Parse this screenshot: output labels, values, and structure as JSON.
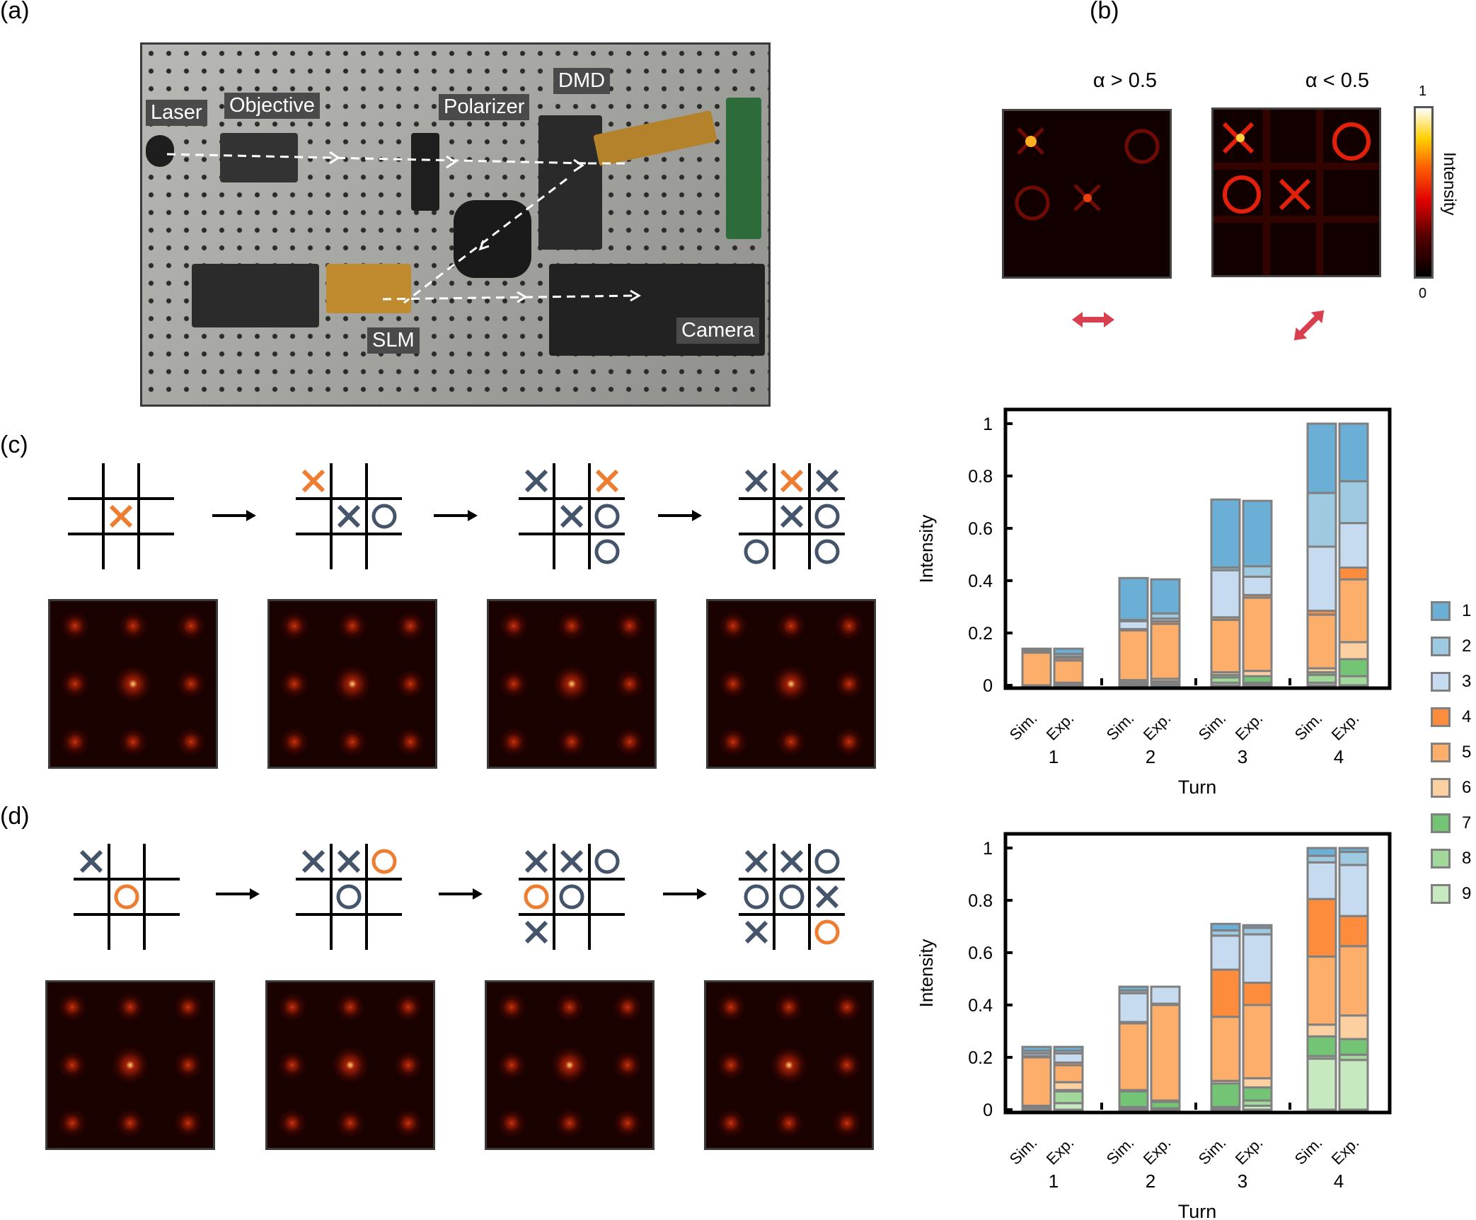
{
  "panels": {
    "a": "(a)",
    "b": "(b)",
    "c": "(c)",
    "d": "(d)"
  },
  "photo_labels": {
    "laser": "Laser",
    "objective": "Objective",
    "polarizer": "Polarizer",
    "dmd": "DMD",
    "slm": "SLM",
    "camera": "Camera"
  },
  "panel_b": {
    "left_title": "α > 0.5",
    "right_title": "α < 0.5",
    "colorbar_label": "Intensity",
    "colorbar_max": "1",
    "colorbar_min": "0",
    "arrow_color": "#d9404f",
    "left_polarization": "horizontal",
    "right_polarization": "diagonal"
  },
  "boards": {
    "c": [
      [
        [
          "",
          "",
          ""
        ],
        [
          "",
          "X*",
          ""
        ],
        [
          "",
          "",
          ""
        ]
      ],
      [
        [
          "X*",
          "",
          ""
        ],
        [
          "",
          "X",
          "O"
        ],
        [
          "",
          "",
          ""
        ]
      ],
      [
        [
          "X",
          "",
          "X*"
        ],
        [
          "",
          "X",
          "O"
        ],
        [
          "",
          "",
          "O"
        ]
      ],
      [
        [
          "X",
          "X*",
          "X"
        ],
        [
          "",
          "X",
          "O"
        ],
        [
          "O",
          "",
          "O"
        ]
      ]
    ],
    "d": [
      [
        [
          "X",
          "",
          ""
        ],
        [
          "",
          "O*",
          ""
        ],
        [
          "",
          "",
          ""
        ]
      ],
      [
        [
          "X",
          "X",
          "O*"
        ],
        [
          "",
          "O",
          ""
        ],
        [
          "",
          "",
          ""
        ]
      ],
      [
        [
          "X",
          "X",
          "O"
        ],
        [
          "O*",
          "O",
          ""
        ],
        [
          "X",
          "",
          ""
        ]
      ],
      [
        [
          "X",
          "X",
          "O"
        ],
        [
          "O",
          "O",
          "X"
        ],
        [
          "X",
          "",
          "O*"
        ]
      ]
    ],
    "mark_color": "#44546a",
    "highlight_color": "#ed7d31"
  },
  "legend": {
    "labels": [
      "1",
      "2",
      "3",
      "4",
      "5",
      "6",
      "7",
      "8",
      "9"
    ],
    "colors": [
      "#6baed6",
      "#9ecae1",
      "#c6dbef",
      "#fd8d3c",
      "#fdae6b",
      "#fdd0a2",
      "#74c476",
      "#a1d99b",
      "#c7e9c0"
    ],
    "edge_color": "#808080"
  },
  "chart_data": [
    {
      "type": "bar",
      "stacked": true,
      "panel": "c",
      "ylabel": "Intensity",
      "xlabel": "Turn",
      "ylim": [
        0,
        1
      ],
      "yticks": [
        "0",
        "0.2",
        "0.4",
        "0.6",
        "0.8",
        "1"
      ],
      "categories": [
        "1",
        "2",
        "3",
        "4"
      ],
      "bar_labels": [
        "Sim.",
        "Exp."
      ],
      "series_order": "segments listed for items 1..9, stacked 9 at bottom",
      "groups": [
        {
          "label": "1",
          "bars": [
            {
              "label": "Sim.",
              "values": [
                0.005,
                0.005,
                0,
                0.005,
                0.125,
                0,
                0,
                0,
                0
              ]
            },
            {
              "label": "Exp.",
              "values": [
                0.02,
                0.01,
                0.005,
                0.01,
                0.085,
                0.005,
                0,
                0,
                0.005
              ]
            }
          ]
        },
        {
          "label": "2",
          "bars": [
            {
              "label": "Sim.",
              "values": [
                0.16,
                0.005,
                0.03,
                0.005,
                0.19,
                0.005,
                0.005,
                0.005,
                0.005
              ]
            },
            {
              "label": "Exp.",
              "values": [
                0.13,
                0.02,
                0.01,
                0.01,
                0.21,
                0.01,
                0.005,
                0.005,
                0.005
              ]
            }
          ]
        },
        {
          "label": "3",
          "bars": [
            {
              "label": "Sim.",
              "values": [
                0.26,
                0.01,
                0.18,
                0.01,
                0.2,
                0.01,
                0.01,
                0.02,
                0.01
              ]
            },
            {
              "label": "Exp.",
              "values": [
                0.25,
                0.04,
                0.07,
                0.01,
                0.28,
                0.02,
                0.025,
                0.005,
                0.005
              ]
            }
          ]
        },
        {
          "label": "4",
          "bars": [
            {
              "label": "Sim.",
              "values": [
                0.265,
                0.205,
                0.245,
                0.015,
                0.205,
                0.015,
                0.01,
                0.03,
                0.01
              ]
            },
            {
              "label": "Exp.",
              "values": [
                0.22,
                0.16,
                0.17,
                0.045,
                0.24,
                0.065,
                0.065,
                0.035,
                0
              ]
            }
          ]
        }
      ]
    },
    {
      "type": "bar",
      "stacked": true,
      "panel": "d",
      "ylabel": "Intensity",
      "xlabel": "Turn",
      "ylim": [
        0,
        1
      ],
      "yticks": [
        "0",
        "0.2",
        "0.4",
        "0.6",
        "0.8",
        "1"
      ],
      "categories": [
        "1",
        "2",
        "3",
        "4"
      ],
      "bar_labels": [
        "Sim.",
        "Exp."
      ],
      "series_order": "segments listed for items 1..9, stacked 9 at bottom",
      "groups": [
        {
          "label": "1",
          "bars": [
            {
              "label": "Sim.",
              "values": [
                0.015,
                0.01,
                0.01,
                0.005,
                0.185,
                0,
                0.005,
                0.005,
                0.005
              ]
            },
            {
              "label": "Exp.",
              "values": [
                0.015,
                0.01,
                0.035,
                0.01,
                0.065,
                0.03,
                0.005,
                0.045,
                0.025
              ]
            }
          ]
        },
        {
          "label": "2",
          "bars": [
            {
              "label": "Sim.",
              "values": [
                0.015,
                0.01,
                0.11,
                0.005,
                0.255,
                0.005,
                0.06,
                0.005,
                0.005
              ]
            },
            {
              "label": "Exp.",
              "values": [
                0,
                0,
                0.065,
                0.005,
                0.365,
                0.005,
                0.025,
                0,
                0.005
              ]
            }
          ]
        },
        {
          "label": "3",
          "bars": [
            {
              "label": "Sim.",
              "values": [
                0.025,
                0.02,
                0.13,
                0.18,
                0.245,
                0.01,
                0.09,
                0.005,
                0.005
              ]
            },
            {
              "label": "Exp.",
              "values": [
                0.01,
                0.025,
                0.185,
                0.085,
                0.28,
                0.035,
                0.05,
                0.02,
                0.015
              ]
            }
          ]
        },
        {
          "label": "4",
          "bars": [
            {
              "label": "Sim.",
              "values": [
                0.03,
                0.025,
                0.14,
                0.22,
                0.26,
                0.045,
                0.075,
                0.01,
                0.195
              ]
            },
            {
              "label": "Exp.",
              "values": [
                0.015,
                0.05,
                0.195,
                0.115,
                0.265,
                0.09,
                0.06,
                0.02,
                0.19
              ]
            }
          ]
        }
      ]
    }
  ]
}
